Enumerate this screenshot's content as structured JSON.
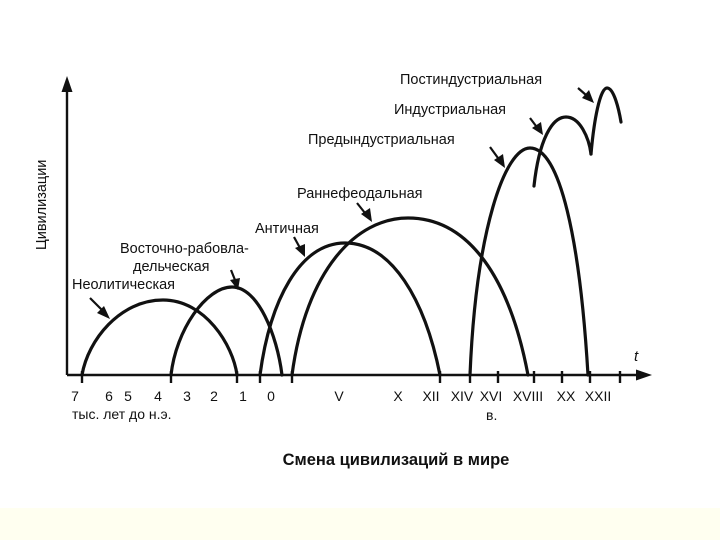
{
  "diagram": {
    "y_axis_label": "Цивилизации",
    "t_label": "t",
    "civilizations": [
      {
        "key": "neolithic",
        "label_lines": [
          "Неолитическая"
        ]
      },
      {
        "key": "eastern-slave",
        "label_lines": [
          "Восточно-рабовла-",
          "дельческая"
        ]
      },
      {
        "key": "antique",
        "label_lines": [
          "Античная"
        ]
      },
      {
        "key": "early-feudal",
        "label_lines": [
          "Раннефеодальная"
        ]
      },
      {
        "key": "preindustrial",
        "label_lines": [
          "Предындустриальная"
        ]
      },
      {
        "key": "industrial",
        "label_lines": [
          "Индустриальная"
        ]
      },
      {
        "key": "postindustrial",
        "label_lines": [
          "Постиндустриальная"
        ]
      }
    ],
    "ticks": [
      "7",
      "6",
      "5",
      "4",
      "3",
      "2",
      "1",
      "0",
      "V",
      "X",
      "XII",
      "XIV",
      "XVI",
      "XVIII",
      "XX",
      "XXII"
    ],
    "bc_caption": "тыс. лет до н.э.",
    "century_caption": "в.",
    "title": "Смена цивилизаций в мире"
  }
}
